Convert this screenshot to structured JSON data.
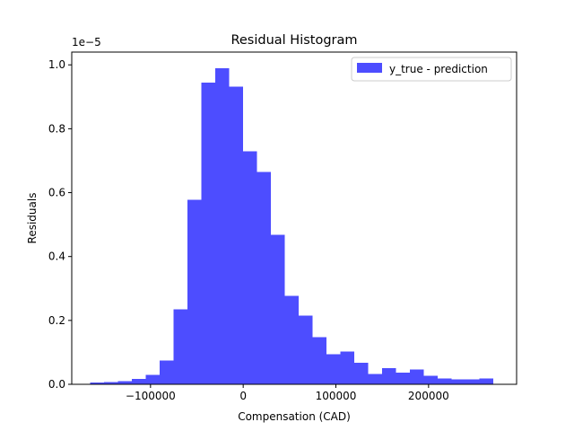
{
  "chart_data": {
    "type": "bar",
    "title": "Residual Histogram",
    "xlabel": "Compensation (CAD)",
    "ylabel": "Residuals",
    "y_offset_label": "1e−5",
    "y_scale": 1e-05,
    "xlim": [
      -185000,
      295000
    ],
    "ylim": [
      0,
      1.04
    ],
    "xticks": [
      -100000,
      0,
      100000,
      200000
    ],
    "xtick_labels": [
      "−100000",
      "0",
      "100000",
      "200000"
    ],
    "yticks": [
      0.0,
      0.2,
      0.4,
      0.6,
      0.8,
      1.0
    ],
    "ytick_labels": [
      "0.0",
      "0.2",
      "0.4",
      "0.6",
      "0.8",
      "1.0"
    ],
    "bin_edges": [
      -165000,
      -150000,
      -135000,
      -120000,
      -105000,
      -90000,
      -75000,
      -60000,
      -45000,
      -30000,
      -15000,
      0,
      15000,
      30000,
      45000,
      60000,
      75000,
      90000,
      105000,
      120000,
      135000,
      150000,
      165000,
      180000,
      195000,
      210000,
      225000,
      240000,
      255000,
      270000
    ],
    "series": [
      {
        "name": "y_true - prediction",
        "color": "#4d4dff",
        "values": [
          0.005,
          0.007,
          0.01,
          0.017,
          0.03,
          0.075,
          0.235,
          0.578,
          0.945,
          0.99,
          0.932,
          0.73,
          0.665,
          0.468,
          0.277,
          0.215,
          0.148,
          0.094,
          0.103,
          0.067,
          0.033,
          0.05,
          0.036,
          0.047,
          0.027,
          0.018,
          0.015,
          0.015,
          0.018
        ]
      }
    ],
    "legend_position": "upper right",
    "grid": false
  }
}
